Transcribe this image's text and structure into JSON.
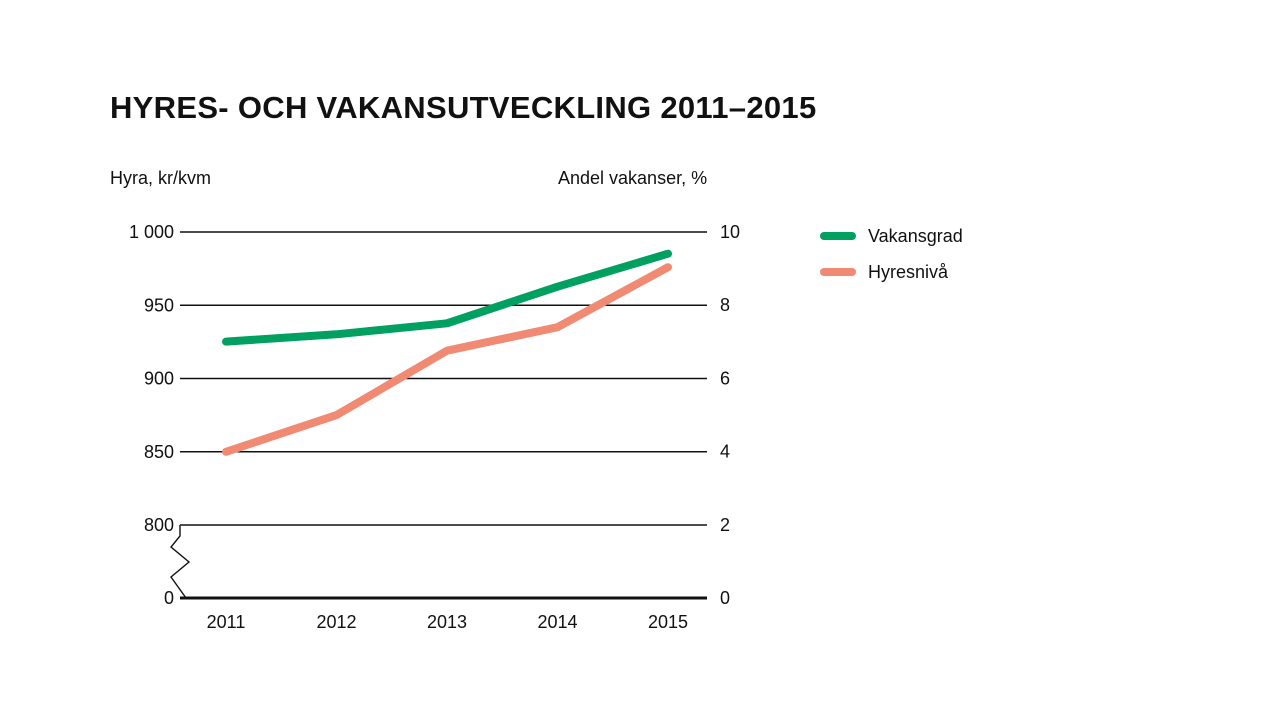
{
  "chart_data": {
    "type": "line",
    "title": "HYRES- OCH VAKANSUTVECKLING 2011–2015",
    "ylabel_left": "Hyra, kr/kvm",
    "ylabel_right": "Andel vakanser, %",
    "categories": [
      "2011",
      "2012",
      "2013",
      "2014",
      "2015"
    ],
    "y_left": {
      "range": [
        0,
        1000
      ],
      "broken_axis_below": 800,
      "tick_values": [
        0,
        800,
        850,
        900,
        950,
        1000
      ],
      "tick_labels": [
        "0",
        "800",
        "850",
        "900",
        "950",
        "1 000"
      ]
    },
    "y_right": {
      "range": [
        0,
        10
      ],
      "tick_values": [
        0,
        2,
        4,
        6,
        8,
        10
      ],
      "tick_labels": [
        "0",
        "2",
        "4",
        "6",
        "8",
        "10"
      ]
    },
    "grid": true,
    "legend_position": "right",
    "series": [
      {
        "name": "Vakansgrad",
        "axis": "right",
        "color": "#00a060",
        "values": [
          7.0,
          7.2,
          7.5,
          8.5,
          9.4
        ]
      },
      {
        "name": "Hyresnivå",
        "axis": "left",
        "color": "#f08a72",
        "values": [
          850,
          875,
          919,
          935,
          976
        ]
      }
    ]
  }
}
